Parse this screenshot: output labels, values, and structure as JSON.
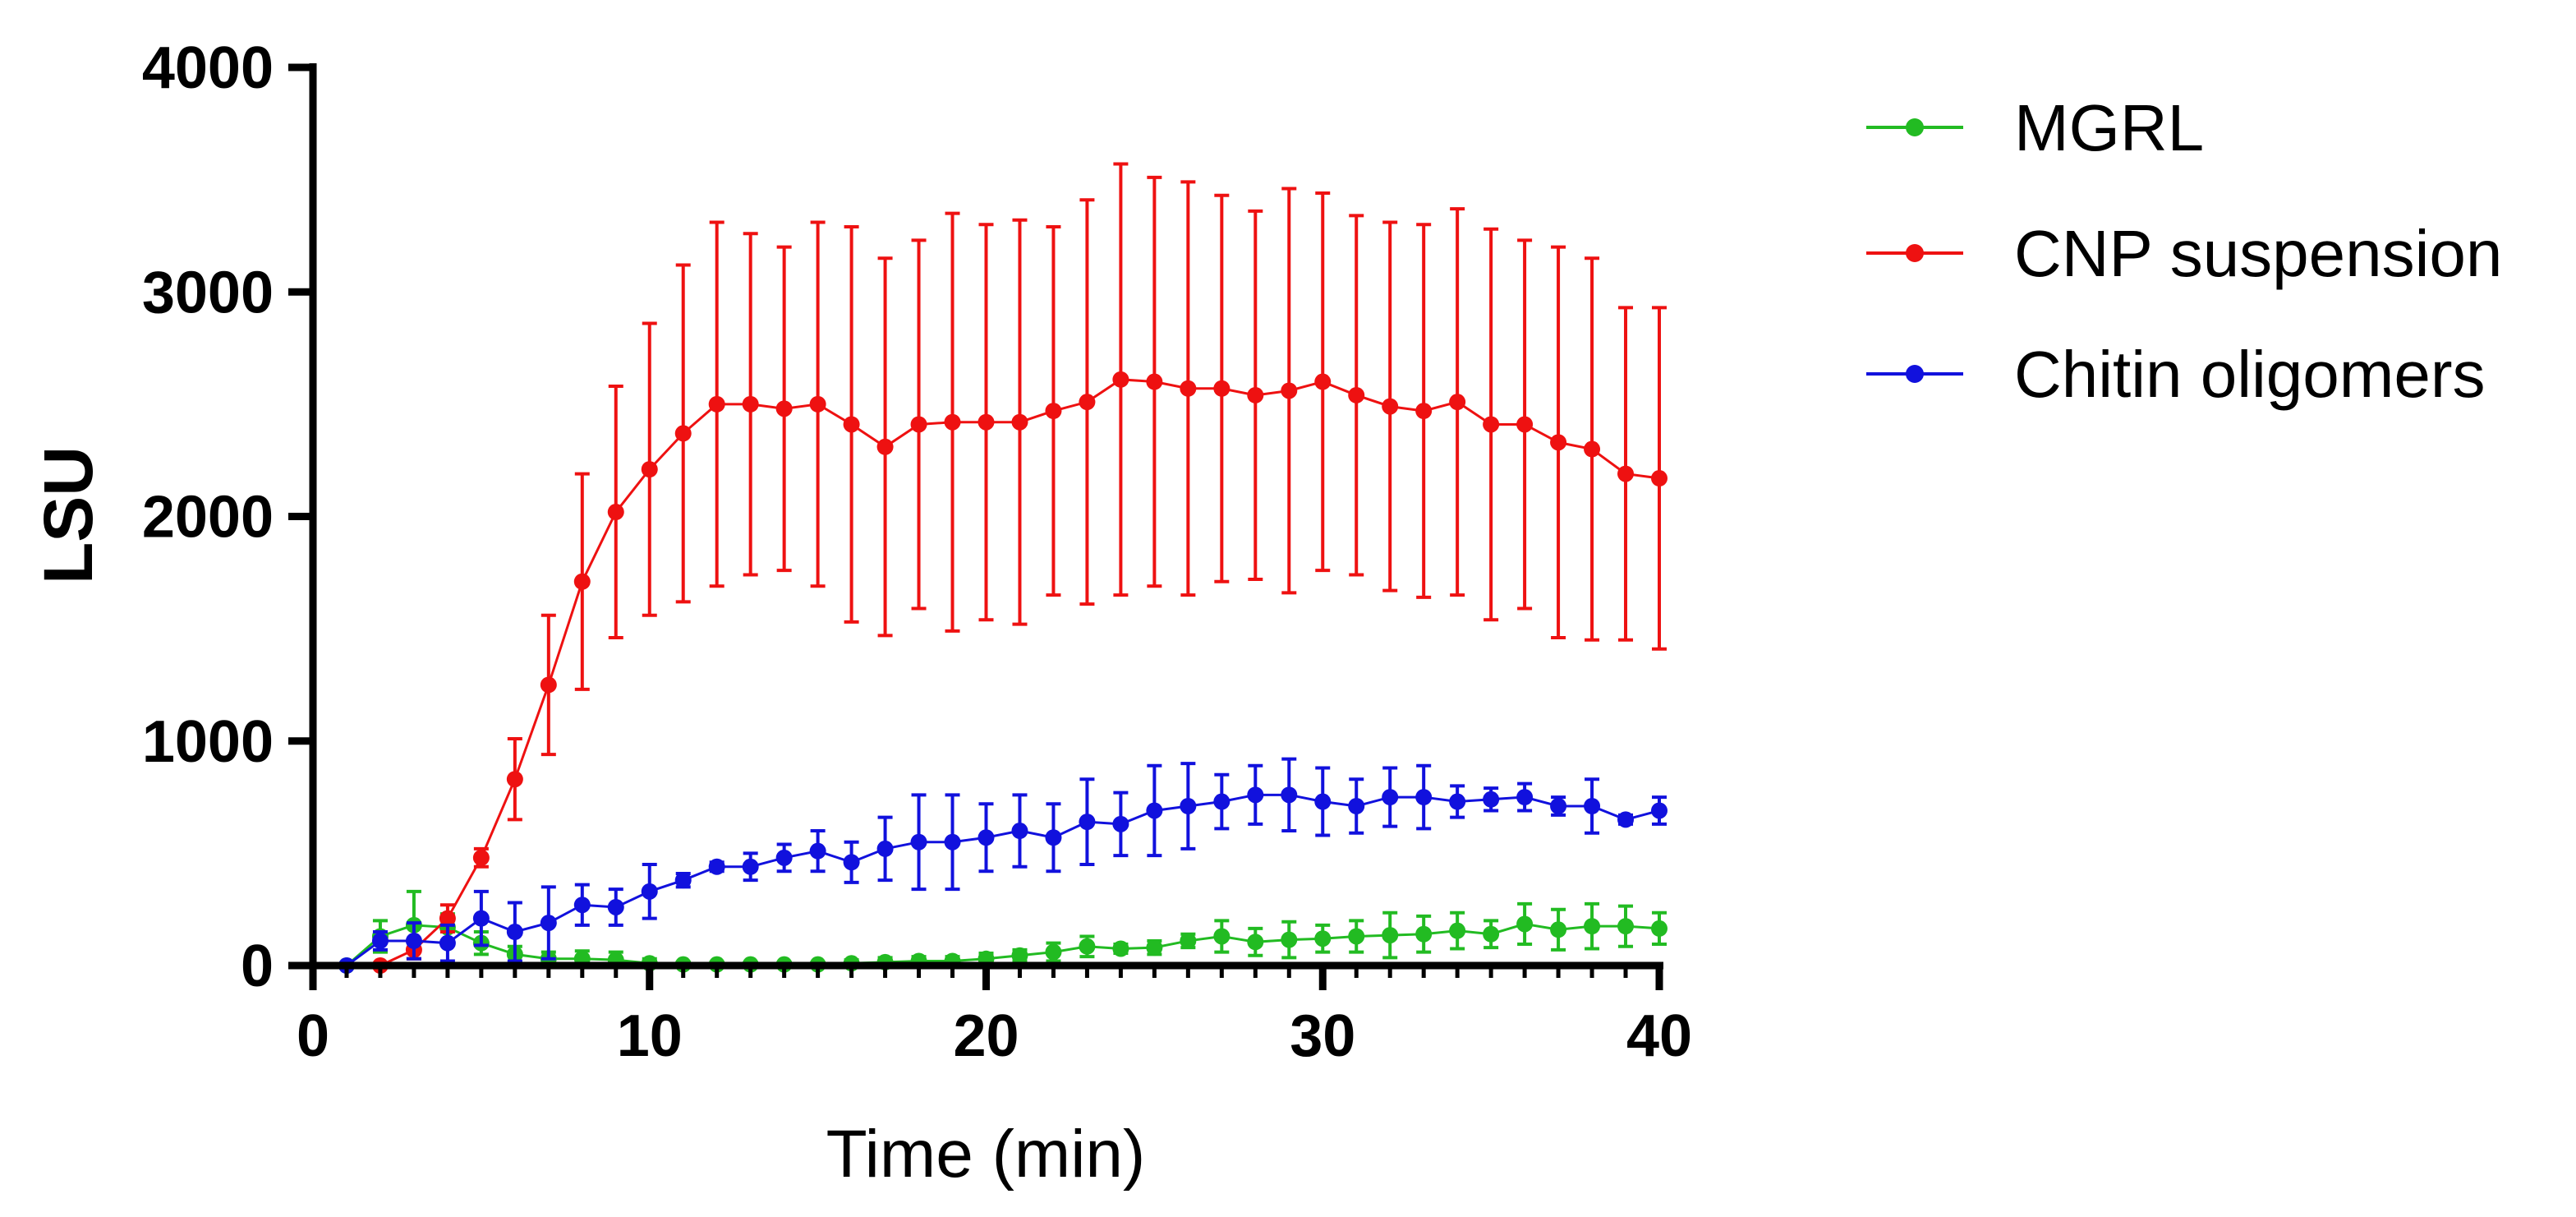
{
  "chart_data": {
    "type": "line",
    "title": "",
    "xlabel": "Time  (min)",
    "ylabel": "LSU",
    "xlim": [
      0,
      40
    ],
    "ylim": [
      0,
      4000
    ],
    "xticks": [
      "0",
      "10",
      "20",
      "30",
      "40"
    ],
    "yticks": [
      "0",
      "1000",
      "2000",
      "3000",
      "4000"
    ],
    "grid": false,
    "legend_position": "right",
    "series": [
      {
        "name": "MGRL",
        "color": "#22bb22",
        "x": [
          1,
          2,
          3,
          4,
          5,
          6,
          7,
          8,
          9,
          10,
          11,
          12,
          13,
          14,
          15,
          16,
          17,
          18,
          19,
          20,
          21,
          22,
          23,
          24,
          25,
          26,
          27,
          28,
          29,
          30,
          31,
          32,
          33,
          34,
          35,
          36,
          37,
          38,
          39,
          40
        ],
        "values": [
          0,
          130,
          180,
          170,
          100,
          50,
          30,
          30,
          25,
          10,
          5,
          5,
          5,
          5,
          5,
          10,
          15,
          20,
          20,
          30,
          45,
          60,
          85,
          75,
          80,
          110,
          130,
          105,
          115,
          120,
          130,
          135,
          140,
          155,
          140,
          185,
          160,
          175,
          175,
          165
        ],
        "errors": [
          0,
          70,
          150,
          60,
          50,
          35,
          30,
          35,
          35,
          20,
          10,
          5,
          5,
          5,
          5,
          15,
          20,
          20,
          20,
          25,
          25,
          40,
          45,
          20,
          30,
          30,
          70,
          60,
          80,
          60,
          70,
          100,
          80,
          80,
          60,
          90,
          90,
          100,
          90,
          70
        ]
      },
      {
        "name": "CNP suspension",
        "color": "#ee1111",
        "x": [
          2,
          3,
          4,
          5,
          6,
          7,
          8,
          9,
          10,
          11,
          12,
          13,
          14,
          15,
          16,
          17,
          18,
          19,
          20,
          21,
          22,
          23,
          24,
          25,
          26,
          27,
          28,
          29,
          30,
          31,
          32,
          33,
          34,
          35,
          36,
          37,
          38,
          39,
          40
        ],
        "values": [
          0,
          70,
          210,
          480,
          830,
          1250,
          1710,
          2020,
          2210,
          2370,
          2500,
          2500,
          2480,
          2500,
          2410,
          2310,
          2410,
          2420,
          2420,
          2420,
          2470,
          2510,
          2610,
          2600,
          2570,
          2570,
          2540,
          2560,
          2600,
          2540,
          2490,
          2470,
          2510,
          2410,
          2410,
          2330,
          2300,
          2190,
          2170
        ],
        "errors": [
          0,
          40,
          60,
          40,
          180,
          310,
          480,
          560,
          650,
          750,
          810,
          760,
          720,
          810,
          880,
          840,
          820,
          930,
          880,
          900,
          820,
          900,
          960,
          910,
          920,
          860,
          820,
          900,
          840,
          800,
          820,
          830,
          860,
          870,
          820,
          870,
          850,
          740,
          760
        ]
      },
      {
        "name": "Chitin oligomers",
        "color": "#1111dd",
        "x": [
          1,
          2,
          3,
          4,
          5,
          6,
          7,
          8,
          9,
          10,
          11,
          12,
          13,
          14,
          15,
          16,
          17,
          18,
          19,
          20,
          21,
          22,
          23,
          24,
          25,
          26,
          27,
          28,
          29,
          30,
          31,
          32,
          33,
          34,
          35,
          36,
          37,
          38,
          39,
          40
        ],
        "values": [
          0,
          110,
          110,
          100,
          210,
          150,
          190,
          270,
          260,
          330,
          380,
          440,
          440,
          480,
          510,
          460,
          520,
          550,
          550,
          570,
          600,
          570,
          640,
          630,
          690,
          710,
          730,
          760,
          760,
          730,
          710,
          750,
          750,
          730,
          740,
          750,
          710,
          710,
          650,
          690
        ],
        "errors": [
          0,
          40,
          80,
          80,
          120,
          130,
          160,
          90,
          80,
          120,
          30,
          20,
          60,
          60,
          90,
          90,
          140,
          210,
          210,
          150,
          160,
          150,
          190,
          140,
          200,
          190,
          120,
          130,
          160,
          150,
          120,
          130,
          140,
          70,
          50,
          60,
          40,
          120,
          20,
          60
        ]
      }
    ]
  }
}
